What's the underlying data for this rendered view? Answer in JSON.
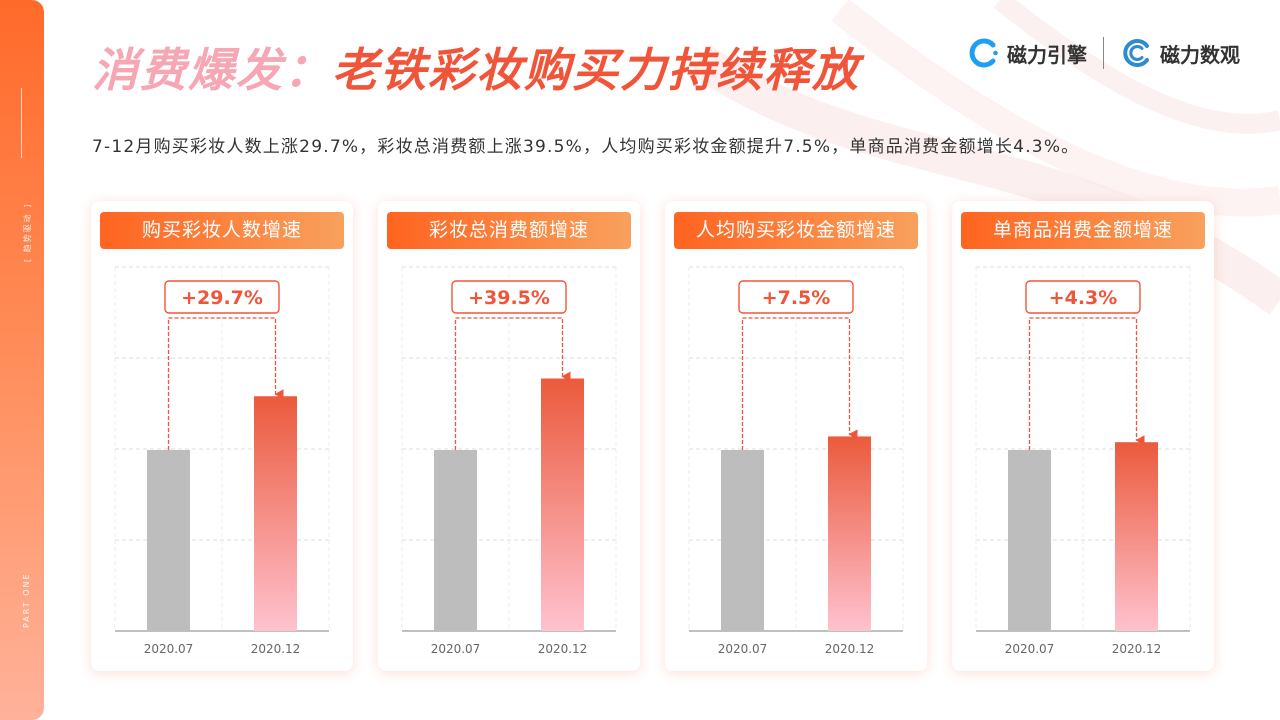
{
  "sidebar": {
    "tag": "[ 趋势驱动 ]",
    "part": "PART ONE"
  },
  "title": {
    "part1": "消费爆发：",
    "part2": "老铁彩妆购买力持续释放"
  },
  "logos": [
    {
      "name": "磁力引擎",
      "icon": "c-arc-icon"
    },
    {
      "name": "磁力数观",
      "icon": "c-ring-icon"
    }
  ],
  "subtitle": "7-12月购买彩妆人数上涨29.7%，彩妆总消费额上涨39.5%，人均购买彩妆金额提升7.5%，单商品消费金额增长4.3%。",
  "colors": {
    "accent": "#f0553a",
    "gray_bar": "#bdbdbd",
    "bar_top": "#eb5a3c",
    "bar_bottom": "#ffc2cf"
  },
  "chart_data": [
    {
      "type": "bar",
      "title": "购买彩妆人数增速",
      "categories": [
        "2020.07",
        "2020.12"
      ],
      "values": [
        1.0,
        1.297
      ],
      "change_label": "+29.7%"
    },
    {
      "type": "bar",
      "title": "彩妆总消费额增速",
      "categories": [
        "2020.07",
        "2020.12"
      ],
      "values": [
        1.0,
        1.395
      ],
      "change_label": "+39.5%"
    },
    {
      "type": "bar",
      "title": "人均购买彩妆金额增速",
      "categories": [
        "2020.07",
        "2020.12"
      ],
      "values": [
        1.0,
        1.075
      ],
      "change_label": "+7.5%"
    },
    {
      "type": "bar",
      "title": "单商品消费金额增速",
      "categories": [
        "2020.07",
        "2020.12"
      ],
      "values": [
        1.0,
        1.043
      ],
      "change_label": "+4.3%"
    }
  ]
}
